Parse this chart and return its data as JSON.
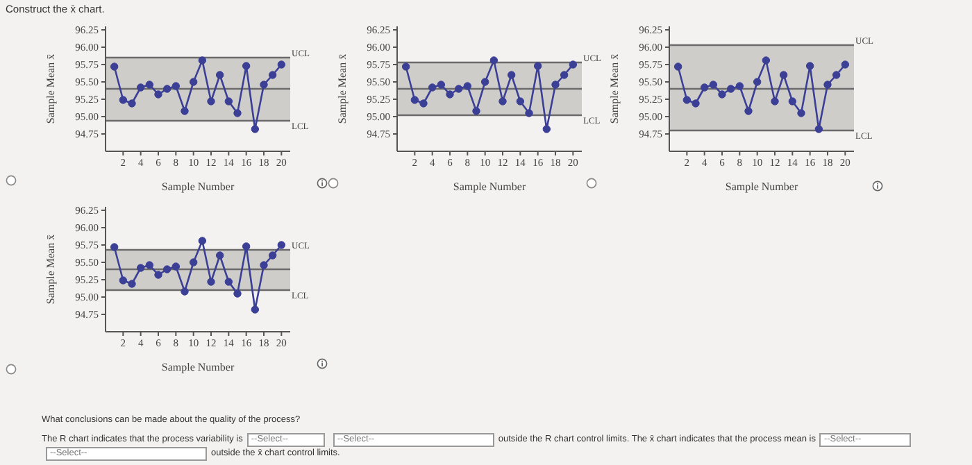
{
  "chart_data": [
    {
      "type": "line",
      "title": "Construct the x̄ chart.",
      "xlabel": "Sample Number",
      "ylabel": "Sample Mean x̄",
      "x": [
        1,
        2,
        3,
        4,
        5,
        6,
        7,
        8,
        9,
        10,
        11,
        12,
        13,
        14,
        15,
        16,
        17,
        18,
        19,
        20
      ],
      "series": [
        {
          "color": "#3b3f96",
          "values": [
            95.72,
            95.24,
            95.19,
            95.42,
            95.46,
            95.32,
            95.4,
            95.44,
            95.08,
            95.5,
            95.81,
            95.22,
            95.6,
            95.22,
            95.05,
            95.73,
            94.82,
            95.46,
            95.6,
            95.75
          ]
        }
      ],
      "xlim": [
        0,
        21
      ],
      "xticks": [
        2,
        4,
        6,
        8,
        10,
        12,
        14,
        16,
        18,
        20
      ],
      "ylim": [
        94.5,
        96.3
      ],
      "yticks": [
        94.75,
        {
          "value": 95,
          "label": "95.00"
        },
        95.25,
        {
          "value": 95.5,
          "label": "95.50"
        },
        95.75,
        {
          "value": 96,
          "label": "96.00"
        },
        96.25
      ],
      "bands": [
        {
          "axis": "y",
          "from": 94.94,
          "to": 95.85,
          "color": "#cfcdca"
        }
      ],
      "ref_lines": [
        {
          "axis": "y",
          "value": 95.85,
          "label": "UCL",
          "color": "#6b6b6b"
        },
        {
          "axis": "y",
          "value": 95.4,
          "color": "#6b6b6b"
        },
        {
          "axis": "y",
          "value": 94.94,
          "label": "LCL",
          "color": "#6b6b6b"
        }
      ],
      "marker": "circle",
      "grid": false,
      "legend": false
    },
    {
      "type": "line",
      "xlabel": "Sample Number",
      "ylabel": "Sample Mean x̄",
      "x": [
        1,
        2,
        3,
        4,
        5,
        6,
        7,
        8,
        9,
        10,
        11,
        12,
        13,
        14,
        15,
        16,
        17,
        18,
        19,
        20
      ],
      "series": [
        {
          "color": "#3b3f96",
          "values": [
            95.72,
            95.24,
            95.19,
            95.42,
            95.46,
            95.32,
            95.4,
            95.44,
            95.08,
            95.5,
            95.81,
            95.22,
            95.6,
            95.22,
            95.05,
            95.73,
            94.82,
            95.46,
            95.6,
            95.75
          ]
        }
      ],
      "xlim": [
        0,
        21
      ],
      "xticks": [
        2,
        4,
        6,
        8,
        10,
        12,
        14,
        16,
        18,
        20
      ],
      "ylim": [
        94.5,
        96.3
      ],
      "yticks": [
        94.75,
        {
          "value": 95,
          "label": "95.00"
        },
        95.25,
        {
          "value": 95.5,
          "label": "95.50"
        },
        95.75,
        {
          "value": 96,
          "label": "96.00"
        },
        96.25
      ],
      "bands": [
        {
          "axis": "y",
          "from": 95.02,
          "to": 95.78,
          "color": "#cfcdca"
        }
      ],
      "ref_lines": [
        {
          "axis": "y",
          "value": 95.78,
          "label": "UCL",
          "color": "#6b6b6b"
        },
        {
          "axis": "y",
          "value": 95.4,
          "color": "#6b6b6b"
        },
        {
          "axis": "y",
          "value": 95.02,
          "label": "LCL",
          "color": "#6b6b6b"
        }
      ],
      "marker": "circle",
      "grid": false,
      "legend": false
    },
    {
      "type": "line",
      "xlabel": "Sample Number",
      "ylabel": "Sample Mean x̄",
      "x": [
        1,
        2,
        3,
        4,
        5,
        6,
        7,
        8,
        9,
        10,
        11,
        12,
        13,
        14,
        15,
        16,
        17,
        18,
        19,
        20
      ],
      "series": [
        {
          "color": "#3b3f96",
          "values": [
            95.72,
            95.24,
            95.19,
            95.42,
            95.46,
            95.32,
            95.4,
            95.44,
            95.08,
            95.5,
            95.81,
            95.22,
            95.6,
            95.22,
            95.05,
            95.73,
            94.82,
            95.46,
            95.6,
            95.75
          ]
        }
      ],
      "xlim": [
        0,
        21
      ],
      "xticks": [
        2,
        4,
        6,
        8,
        10,
        12,
        14,
        16,
        18,
        20
      ],
      "ylim": [
        94.5,
        96.3
      ],
      "yticks": [
        94.75,
        {
          "value": 95,
          "label": "95.00"
        },
        95.25,
        {
          "value": 95.5,
          "label": "95.50"
        },
        95.75,
        {
          "value": 96,
          "label": "96.00"
        },
        96.25
      ],
      "bands": [
        {
          "axis": "y",
          "from": 94.8,
          "to": 96.03,
          "color": "#cfcdca"
        }
      ],
      "ref_lines": [
        {
          "axis": "y",
          "value": 96.03,
          "label": "UCL",
          "color": "#6b6b6b"
        },
        {
          "axis": "y",
          "value": 95.4,
          "color": "#6b6b6b"
        },
        {
          "axis": "y",
          "value": 94.8,
          "label": "LCL",
          "color": "#6b6b6b"
        }
      ],
      "marker": "circle",
      "grid": false,
      "legend": false
    },
    {
      "type": "line",
      "xlabel": "Sample Number",
      "ylabel": "Sample Mean x̄",
      "x": [
        1,
        2,
        3,
        4,
        5,
        6,
        7,
        8,
        9,
        10,
        11,
        12,
        13,
        14,
        15,
        16,
        17,
        18,
        19,
        20
      ],
      "series": [
        {
          "color": "#3b3f96",
          "values": [
            95.72,
            95.24,
            95.19,
            95.42,
            95.46,
            95.32,
            95.4,
            95.44,
            95.08,
            95.5,
            95.81,
            95.22,
            95.6,
            95.22,
            95.05,
            95.73,
            94.82,
            95.46,
            95.6,
            95.75
          ]
        }
      ],
      "xlim": [
        0,
        21
      ],
      "xticks": [
        2,
        4,
        6,
        8,
        10,
        12,
        14,
        16,
        18,
        20
      ],
      "ylim": [
        94.5,
        96.3
      ],
      "yticks": [
        94.75,
        {
          "value": 95,
          "label": "95.00"
        },
        95.25,
        {
          "value": 95.5,
          "label": "95.50"
        },
        95.75,
        {
          "value": 96,
          "label": "96.00"
        },
        96.25
      ],
      "bands": [
        {
          "axis": "y",
          "from": 95.1,
          "to": 95.68,
          "color": "#cfcdca"
        }
      ],
      "ref_lines": [
        {
          "axis": "y",
          "value": 95.68,
          "label": "UCL",
          "color": "#6b6b6b"
        },
        {
          "axis": "y",
          "value": 95.4,
          "color": "#6b6b6b"
        },
        {
          "axis": "y",
          "value": 95.1,
          "label": "LCL",
          "color": "#6b6b6b"
        }
      ],
      "marker": "circle",
      "grid": false,
      "legend": false,
      "annotations": [
        "What conclusions can be made about the quality of the process?",
        "The R chart indicates that the process variability is",
        "--Select--",
        "--Select--",
        "outside the R chart control limits. The x̄ chart indicates that the process mean is",
        "--Select--",
        "--Select--",
        "outside the x̄ chart control limits."
      ]
    }
  ]
}
